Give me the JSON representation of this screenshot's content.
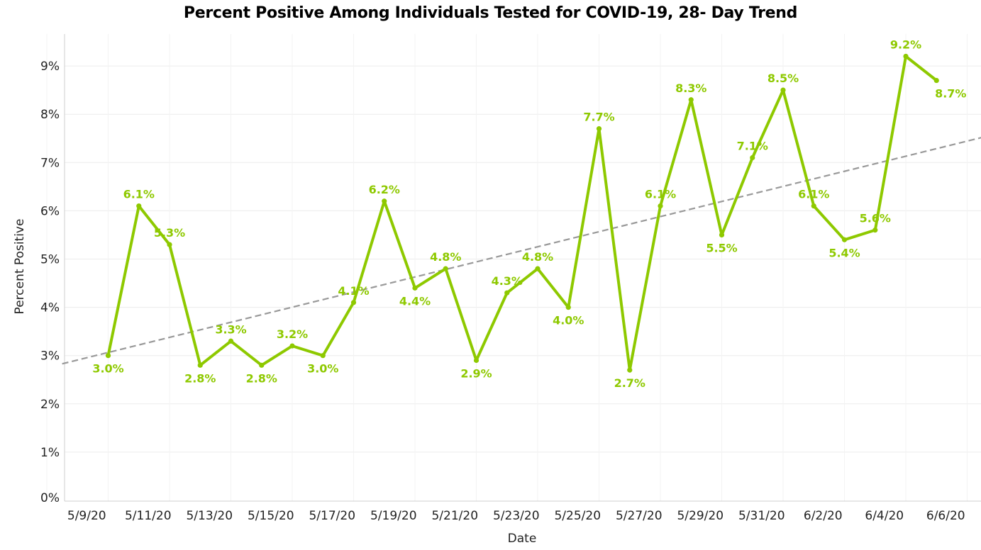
{
  "chart_data": {
    "type": "line",
    "title": "Percent Positive Among Individuals Tested for COVID-19, 28- Day Trend",
    "xlabel": "Date",
    "ylabel": "Percent Positive",
    "ylim": [
      0,
      9.6
    ],
    "yticks": [
      "0%",
      "1%",
      "2%",
      "3%",
      "4%",
      "5%",
      "6%",
      "7%",
      "8%",
      "9%"
    ],
    "ytick_values": [
      0,
      1,
      2,
      3,
      4,
      5,
      6,
      7,
      8,
      9
    ],
    "xticks": [
      "5/9/20",
      "5/11/20",
      "5/13/20",
      "5/15/20",
      "5/17/20",
      "5/19/20",
      "5/21/20",
      "5/23/20",
      "5/25/20",
      "5/27/20",
      "5/29/20",
      "5/31/20",
      "6/2/20",
      "6/4/20",
      "6/6/20"
    ],
    "xtick_positions": [
      0,
      2,
      4,
      6,
      8,
      10,
      12,
      14,
      16,
      18,
      20,
      22,
      24,
      26,
      28
    ],
    "grid": "horizontal",
    "line_color": "#8ec900",
    "trend_color": "#999999",
    "series": [
      {
        "x": [
          1,
          2,
          3,
          4,
          5,
          6,
          7,
          8,
          9,
          10,
          11,
          12,
          13,
          14,
          15,
          16,
          17,
          18,
          19,
          20,
          21,
          22,
          23,
          24,
          25,
          26,
          27,
          28
        ],
        "values": [
          3.0,
          6.1,
          5.3,
          2.8,
          3.3,
          2.8,
          3.2,
          3.0,
          4.1,
          6.2,
          4.4,
          4.8,
          2.9,
          4.3,
          4.8,
          4.0,
          7.7,
          2.7,
          6.1,
          8.3,
          5.5,
          7.1,
          8.5,
          6.1,
          5.4,
          5.6,
          9.2,
          8.7
        ],
        "labels": [
          "3.0%",
          "6.1%",
          "5.3%",
          "2.8%",
          "3.3%",
          "2.8%",
          "3.2%",
          "3.0%",
          "4.1%",
          "6.2%",
          "4.4%",
          "4.8%",
          "2.9%",
          "4.3%",
          "4.8%",
          "4.0%",
          "7.7%",
          "2.7%",
          "6.1%",
          "8.3%",
          "5.5%",
          "7.1%",
          "8.5%",
          "6.1%",
          "5.4%",
          "5.6%",
          "9.2%",
          "8.7%"
        ]
      }
    ],
    "trendline": {
      "style": "dashed",
      "x": [
        -0.5,
        30
      ],
      "values": [
        2.83,
        7.6
      ]
    }
  }
}
